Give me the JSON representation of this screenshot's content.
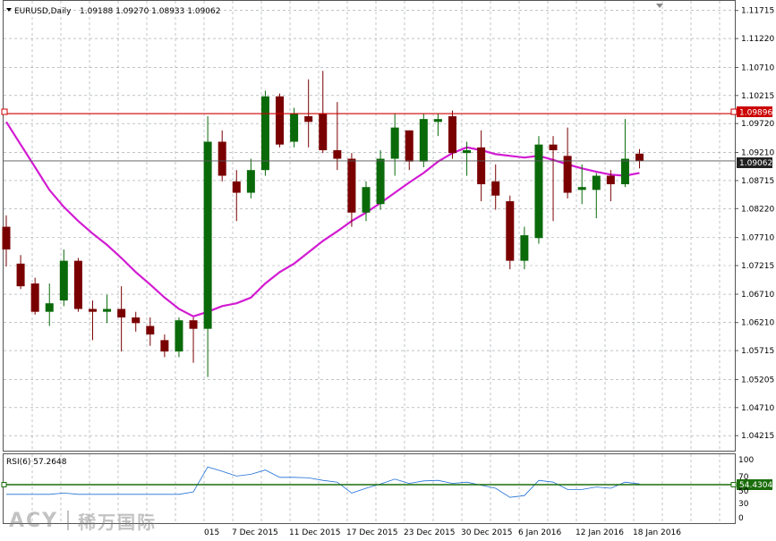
{
  "header": {
    "symbol": "EURUSD,Daily",
    "ohlc": "1.09188 1.09270 1.08933 1.09062"
  },
  "price_axis": {
    "ticks": [
      "1.11715",
      "1.11220",
      "1.10710",
      "1.10215",
      "1.09720",
      "1.09210",
      "1.08715",
      "1.08220",
      "1.07710",
      "1.07215",
      "1.06710",
      "1.06210",
      "1.05715",
      "1.05205",
      "1.04710",
      "1.04215"
    ]
  },
  "resistance": {
    "value": "1.09896",
    "color": "#cc0000"
  },
  "current_price": {
    "value": "1.09062"
  },
  "rsi": {
    "label": "RSI(6) 57.2648",
    "level_value": "54.4304",
    "ticks": [
      "100",
      "70",
      "50",
      "30",
      "0"
    ],
    "color": "#1f6fd6",
    "level_color": "#1a6d0a"
  },
  "dates": [
    "015",
    "7 Dec 2015",
    "11 Dec 2015",
    "17 Dec 2015",
    "23 Dec 2015",
    "30 Dec 2015",
    "6 Jan 2016",
    "12 Jan 2016",
    "18 Jan 2016"
  ],
  "colors": {
    "bull": "#0a6a0a",
    "bear": "#7a0000",
    "ma": "#d21bd2",
    "grid": "#9aa0a6"
  },
  "chart_data": {
    "type": "candlestick",
    "series": [
      {
        "o": 1.079,
        "h": 1.081,
        "l": 1.072,
        "c": 1.075
      },
      {
        "o": 1.0725,
        "h": 1.074,
        "l": 1.068,
        "c": 1.0685
      },
      {
        "o": 1.069,
        "h": 1.07,
        "l": 1.0635,
        "c": 1.064
      },
      {
        "o": 1.064,
        "h": 1.069,
        "l": 1.0615,
        "c": 1.0655
      },
      {
        "o": 1.066,
        "h": 1.075,
        "l": 1.065,
        "c": 1.073
      },
      {
        "o": 1.073,
        "h": 1.0735,
        "l": 1.064,
        "c": 1.0645
      },
      {
        "o": 1.0645,
        "h": 1.066,
        "l": 1.059,
        "c": 1.064
      },
      {
        "o": 1.064,
        "h": 1.067,
        "l": 1.062,
        "c": 1.0645
      },
      {
        "o": 1.0645,
        "h": 1.0685,
        "l": 1.057,
        "c": 1.063
      },
      {
        "o": 1.063,
        "h": 1.064,
        "l": 1.0605,
        "c": 1.062
      },
      {
        "o": 1.0615,
        "h": 1.063,
        "l": 1.058,
        "c": 1.06
      },
      {
        "o": 1.059,
        "h": 1.06,
        "l": 1.056,
        "c": 1.057
      },
      {
        "o": 1.057,
        "h": 1.063,
        "l": 1.056,
        "c": 1.0625
      },
      {
        "o": 1.0625,
        "h": 1.063,
        "l": 1.055,
        "c": 1.061
      },
      {
        "o": 1.061,
        "h": 1.0985,
        "l": 1.0525,
        "c": 1.094
      },
      {
        "o": 1.094,
        "h": 1.096,
        "l": 1.087,
        "c": 1.088
      },
      {
        "o": 1.087,
        "h": 1.089,
        "l": 1.08,
        "c": 1.085
      },
      {
        "o": 1.085,
        "h": 1.091,
        "l": 1.084,
        "c": 1.089
      },
      {
        "o": 1.089,
        "h": 1.103,
        "l": 1.088,
        "c": 1.102
      },
      {
        "o": 1.102,
        "h": 1.1025,
        "l": 1.093,
        "c": 1.0935
      },
      {
        "o": 1.094,
        "h": 1.1,
        "l": 1.093,
        "c": 1.099
      },
      {
        "o": 1.0985,
        "h": 1.105,
        "l": 1.093,
        "c": 1.0975
      },
      {
        "o": 1.099,
        "h": 1.1065,
        "l": 1.092,
        "c": 1.0925
      },
      {
        "o": 1.0925,
        "h": 1.101,
        "l": 1.089,
        "c": 1.091
      },
      {
        "o": 1.091,
        "h": 1.092,
        "l": 1.079,
        "c": 1.0815
      },
      {
        "o": 1.0815,
        "h": 1.087,
        "l": 1.08,
        "c": 1.086
      },
      {
        "o": 1.083,
        "h": 1.0925,
        "l": 1.082,
        "c": 1.091
      },
      {
        "o": 1.091,
        "h": 1.099,
        "l": 1.088,
        "c": 1.0965
      },
      {
        "o": 1.096,
        "h": 1.096,
        "l": 1.089,
        "c": 1.0905
      },
      {
        "o": 1.0905,
        "h": 1.099,
        "l": 1.0895,
        "c": 1.098
      },
      {
        "o": 1.0975,
        "h": 1.099,
        "l": 1.095,
        "c": 1.098
      },
      {
        "o": 1.0985,
        "h": 1.0995,
        "l": 1.091,
        "c": 1.092
      },
      {
        "o": 1.092,
        "h": 1.094,
        "l": 1.088,
        "c": 1.0925
      },
      {
        "o": 1.093,
        "h": 1.096,
        "l": 1.0835,
        "c": 1.0865
      },
      {
        "o": 1.087,
        "h": 1.09,
        "l": 1.082,
        "c": 1.0845
      },
      {
        "o": 1.0835,
        "h": 1.0845,
        "l": 1.0715,
        "c": 1.073
      },
      {
        "o": 1.073,
        "h": 1.079,
        "l": 1.0715,
        "c": 1.0775
      },
      {
        "o": 1.077,
        "h": 1.095,
        "l": 1.076,
        "c": 1.0935
      },
      {
        "o": 1.0935,
        "h": 1.095,
        "l": 1.08,
        "c": 1.0925
      },
      {
        "o": 1.0915,
        "h": 1.0965,
        "l": 1.084,
        "c": 1.085
      },
      {
        "o": 1.0855,
        "h": 1.09,
        "l": 1.083,
        "c": 1.086
      },
      {
        "o": 1.0855,
        "h": 1.0885,
        "l": 1.0805,
        "c": 1.088
      },
      {
        "o": 1.088,
        "h": 1.089,
        "l": 1.0835,
        "c": 1.0865
      },
      {
        "o": 1.0865,
        "h": 1.098,
        "l": 1.086,
        "c": 1.091
      },
      {
        "o": 1.0919,
        "h": 1.0927,
        "l": 1.0893,
        "c": 1.0906
      }
    ],
    "ma": [
      1.0975,
      1.0935,
      1.0895,
      1.0855,
      1.0825,
      1.08,
      1.0778,
      1.0758,
      1.0735,
      1.071,
      1.0688,
      1.0665,
      1.0645,
      1.0632,
      1.064,
      1.065,
      1.0655,
      1.0665,
      1.069,
      1.071,
      1.0725,
      1.0745,
      1.0765,
      1.0782,
      1.08,
      1.0815,
      1.0832,
      1.085,
      1.0868,
      1.0885,
      1.0905,
      1.092,
      1.093,
      1.0925,
      1.0918,
      1.0915,
      1.0912,
      1.0915,
      1.0908,
      1.09,
      1.0893,
      1.0887,
      1.0882,
      1.088,
      1.0885
    ],
    "rsi": [
      40,
      40,
      40,
      40,
      42,
      40,
      40,
      40,
      40,
      40,
      40,
      40,
      40,
      44,
      85,
      78,
      70,
      73,
      80,
      68,
      68,
      67,
      63,
      60,
      42,
      50,
      57,
      65,
      58,
      62,
      63,
      58,
      60,
      55,
      50,
      35,
      38,
      63,
      60,
      48,
      48,
      52,
      50,
      60,
      57
    ],
    "price_range": [
      1.0395,
      1.119
    ],
    "rsi_range": [
      0,
      100
    ]
  }
}
